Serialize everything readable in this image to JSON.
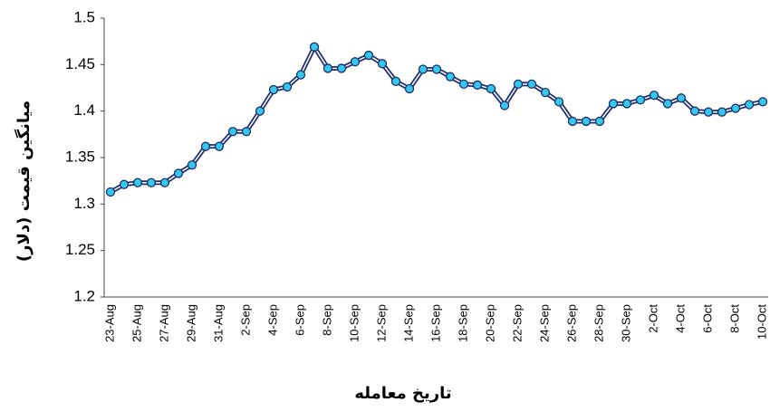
{
  "chart_data": {
    "type": "line",
    "x_label": "تاریخ معامله",
    "y_label": "میانگین قیمت (دلار)",
    "categories": [
      "23-Aug",
      null,
      "25-Aug",
      null,
      "27-Aug",
      null,
      "29-Aug",
      null,
      "31-Aug",
      null,
      "2-Sep",
      null,
      "4-Sep",
      null,
      "6-Sep",
      null,
      "8-Sep",
      null,
      "10-Sep",
      null,
      "12-Sep",
      null,
      "14-Sep",
      null,
      "16-Sep",
      null,
      "18-Sep",
      null,
      "20-Sep",
      null,
      "22-Sep",
      null,
      "24-Sep",
      null,
      "26-Sep",
      null,
      "28-Sep",
      null,
      "30-Sep",
      null,
      "2-Oct",
      null,
      "4-Oct",
      null,
      "6-Oct",
      null,
      "8-Oct",
      null,
      "10-Oct"
    ],
    "series": [
      {
        "color": "#1f2f6e",
        "marker_color": "#33c8ec",
        "values": [
          1.313,
          1.321,
          1.323,
          1.323,
          1.323,
          1.333,
          1.342,
          1.362,
          1.362,
          1.378,
          1.378,
          1.4,
          1.423,
          1.426,
          1.439,
          1.469,
          1.446,
          1.446,
          1.453,
          1.46,
          1.451,
          1.432,
          1.424,
          1.445,
          1.445,
          1.437,
          1.429,
          1.428,
          1.424,
          1.406,
          1.429,
          1.429,
          1.42,
          1.41,
          1.389,
          1.389,
          1.389,
          1.408,
          1.408,
          1.412,
          1.417,
          1.408,
          1.414,
          1.4,
          1.399,
          1.399,
          1.403,
          1.407,
          1.41
        ]
      }
    ],
    "ylim": [
      1.2,
      1.5
    ],
    "yticks": [
      1.2,
      1.25,
      1.3,
      1.35,
      1.4,
      1.45,
      1.5
    ]
  }
}
